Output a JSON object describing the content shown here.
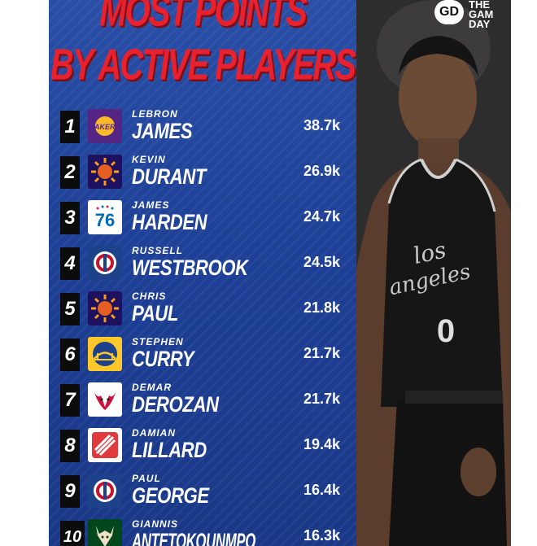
{
  "title": {
    "line1": "MOST POINTS",
    "line2": "BY ACTIVE PLAYERS"
  },
  "brand": {
    "icon": "GD",
    "line1": "THE",
    "line2": "GAM",
    "line3": "DAY"
  },
  "players": [
    {
      "rank": "1",
      "first": "LEBRON",
      "last": "JAMES",
      "points": "38.7k",
      "team_logo": "lakers-logo",
      "color": "#552583"
    },
    {
      "rank": "2",
      "first": "KEVIN",
      "last": "DURANT",
      "points": "26.9k",
      "team_logo": "suns-logo",
      "color": "#1d1160"
    },
    {
      "rank": "3",
      "first": "JAMES",
      "last": "HARDEN",
      "points": "24.7k",
      "team_logo": "76ers-logo",
      "color": "#ffffff"
    },
    {
      "rank": "4",
      "first": "RUSSELL",
      "last": "WESTBROOK",
      "points": "24.5k",
      "team_logo": "clippers-logo",
      "color": "#1d428a"
    },
    {
      "rank": "5",
      "first": "CHRIS",
      "last": "PAUL",
      "points": "21.8k",
      "team_logo": "suns-logo",
      "color": "#1d1160"
    },
    {
      "rank": "6",
      "first": "STEPHEN",
      "last": "CURRY",
      "points": "21.7k",
      "team_logo": "warriors-logo",
      "color": "#ffc72c"
    },
    {
      "rank": "7",
      "first": "DEMAR",
      "last": "DEROZAN",
      "points": "21.7k",
      "team_logo": "bulls-logo",
      "color": "#ffffff"
    },
    {
      "rank": "8",
      "first": "DAMIAN",
      "last": "LILLARD",
      "points": "19.4k",
      "team_logo": "blazers-logo",
      "color": "#ffffff"
    },
    {
      "rank": "9",
      "first": "PAUL",
      "last": "GEORGE",
      "points": "16.4k",
      "team_logo": "clippers-logo",
      "color": "#1d428a"
    },
    {
      "rank": "10",
      "first": "GIANNIS",
      "last": "ANTETOKOUNMPO",
      "points": "16.3k",
      "team_logo": "bucks-logo",
      "color": "#00471b"
    }
  ]
}
